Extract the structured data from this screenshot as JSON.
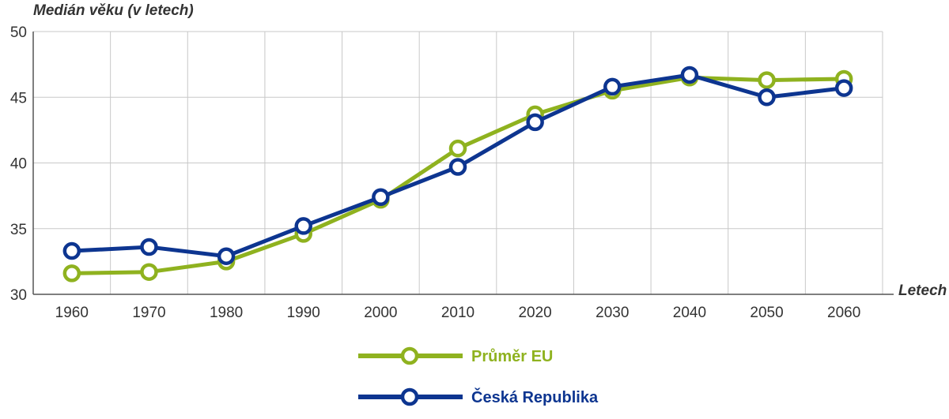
{
  "chart_data": {
    "type": "line",
    "ylabel": "Medián věku (v letech)",
    "xlabel": "Letech",
    "x": [
      "1960",
      "1970",
      "1980",
      "1990",
      "2000",
      "2010",
      "2020",
      "2030",
      "2040",
      "2050",
      "2060"
    ],
    "ylim": [
      30,
      50
    ],
    "yticks": [
      30,
      35,
      40,
      45,
      50
    ],
    "grid": true,
    "legend_position": "bottom-center",
    "series": [
      {
        "name": "Průměr EU",
        "color": "#8fb21f",
        "values": [
          31.6,
          31.7,
          32.5,
          34.6,
          37.2,
          41.1,
          43.7,
          45.5,
          46.5,
          46.3,
          46.4
        ]
      },
      {
        "name": "Česká Republika",
        "color": "#0d3590",
        "values": [
          33.3,
          33.6,
          32.9,
          35.2,
          37.4,
          39.7,
          43.1,
          45.8,
          46.7,
          45.0,
          45.7
        ]
      }
    ]
  }
}
